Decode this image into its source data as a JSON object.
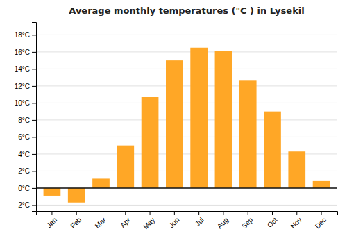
{
  "chart_data": {
    "type": "bar",
    "title": "Average monthly temperatures (°C ) in Lysekil",
    "categories": [
      "Jan",
      "Feb",
      "Mar",
      "Apr",
      "May",
      "Jun",
      "Jul",
      "Aug",
      "Sep",
      "Oct",
      "Nov",
      "Dec"
    ],
    "values": [
      -0.9,
      -1.7,
      1.1,
      5.0,
      10.7,
      15.0,
      16.5,
      16.1,
      12.7,
      9.0,
      4.3,
      0.9
    ],
    "color": "#FFA726",
    "ylim": [
      -2.7,
      19.5
    ],
    "yticks": [
      {
        "value": -2,
        "label": "-2°C"
      },
      {
        "value": 0,
        "label": "0°C"
      },
      {
        "value": 2,
        "label": "2°C"
      },
      {
        "value": 4,
        "label": "4°C"
      },
      {
        "value": 6,
        "label": "6°C"
      },
      {
        "value": 8,
        "label": "8°C"
      },
      {
        "value": 10,
        "label": "10°C"
      },
      {
        "value": 12,
        "label": "12°C"
      },
      {
        "value": 14,
        "label": "14°C"
      },
      {
        "value": 16,
        "label": "16°C"
      },
      {
        "value": 18,
        "label": "18°C"
      }
    ],
    "grid": true
  }
}
